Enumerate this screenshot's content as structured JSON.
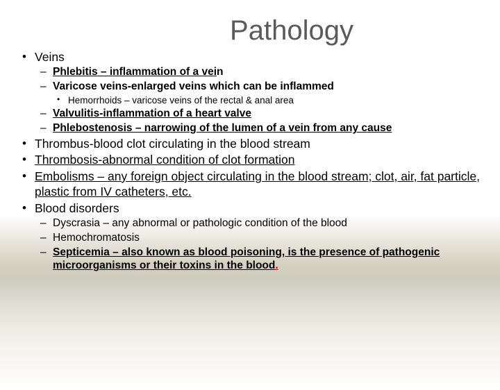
{
  "title": "Pathology",
  "colors": {
    "title": "#5a5a5a",
    "text": "#000000",
    "red_accent": "#c00000",
    "bg_top": "#ffffff",
    "bg_band1": "#e8e5dc",
    "bg_band2": "#cfccc0"
  },
  "typography": {
    "title_fontsize": 40,
    "l1_fontsize": 17.5,
    "l2_fontsize": 15.5,
    "l3_fontsize": 13.5,
    "font_family": "Arial"
  },
  "items": {
    "veins_label": "Veins",
    "phlebitis_a": "Phlebitis – inflammation of a vei",
    "phlebitis_b": "n",
    "varicose": "Varicose veins-enlarged veins which can be inflammed",
    "hemorrhoids": "Hemorrhoids – varicose veins of the rectal & anal area",
    "valvulitis": "Valvulitis-inflammation of a heart valve",
    "phlebostenosis": "Phlebostenosis – narrowing of the lumen of a vein from any cause",
    "thrombus": "Thrombus-blood clot circulating in the blood stream",
    "thrombosis": "Thrombosis-abnormal condition of clot formation",
    "embolisms": "Embolisms – any foreign object circulating in the blood stream; clot, air, fat particle, plastic from IV catheters, etc.",
    "blood_disorders": "Blood disorders",
    "dyscrasia": "Dyscrasia – any abnormal or pathologic condition of the blood",
    "hemochromatosis": "Hemochromatosis",
    "septicemia": "Septicemia – also known as blood poisoning, is the presence of pathogenic microorganisms or their toxins in the blood",
    "septicemia_period": "."
  }
}
